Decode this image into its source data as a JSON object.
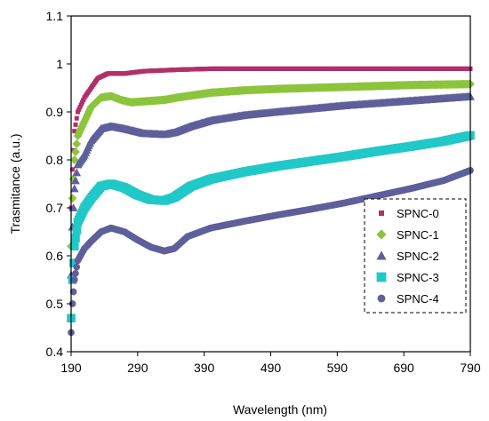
{
  "chart_data": {
    "type": "scatter",
    "title": "",
    "xlabel": "Wavelength (nm)",
    "ylabel": "Trasmitance (a.u.)",
    "xlim": [
      190,
      790
    ],
    "ylim": [
      0.4,
      1.1
    ],
    "xticks": [
      "190",
      "290",
      "390",
      "490",
      "590",
      "690",
      "790"
    ],
    "yticks": [
      "0.4",
      "0.5",
      "0.6",
      "0.7",
      "0.8",
      "0.9",
      "1",
      "1.1"
    ],
    "grid": false,
    "legend_position": "right",
    "series": [
      {
        "name": "SPNC-0",
        "color": "#b0306a",
        "marker": "square-small",
        "points": [
          [
            190,
            0.7
          ],
          [
            192,
            0.78
          ],
          [
            195,
            0.86
          ],
          [
            200,
            0.9
          ],
          [
            210,
            0.93
          ],
          [
            220,
            0.95
          ],
          [
            230,
            0.97
          ],
          [
            245,
            0.98
          ],
          [
            270,
            0.98
          ],
          [
            300,
            0.985
          ],
          [
            350,
            0.988
          ],
          [
            400,
            0.99
          ],
          [
            500,
            0.99
          ],
          [
            600,
            0.99
          ],
          [
            700,
            0.99
          ],
          [
            790,
            0.99
          ]
        ]
      },
      {
        "name": "SPNC-1",
        "color": "#8cc43c",
        "marker": "diamond",
        "points": [
          [
            190,
            0.62
          ],
          [
            192,
            0.72
          ],
          [
            195,
            0.8
          ],
          [
            200,
            0.85
          ],
          [
            210,
            0.88
          ],
          [
            220,
            0.91
          ],
          [
            235,
            0.93
          ],
          [
            250,
            0.933
          ],
          [
            265,
            0.925
          ],
          [
            280,
            0.92
          ],
          [
            300,
            0.922
          ],
          [
            330,
            0.925
          ],
          [
            350,
            0.93
          ],
          [
            400,
            0.94
          ],
          [
            450,
            0.945
          ],
          [
            500,
            0.948
          ],
          [
            600,
            0.952
          ],
          [
            700,
            0.956
          ],
          [
            790,
            0.958
          ]
        ]
      },
      {
        "name": "SPNC-2",
        "color": "#5f5f9a",
        "marker": "triangle",
        "points": [
          [
            190,
            0.56
          ],
          [
            192,
            0.66
          ],
          [
            195,
            0.74
          ],
          [
            200,
            0.79
          ],
          [
            210,
            0.81
          ],
          [
            220,
            0.84
          ],
          [
            235,
            0.865
          ],
          [
            250,
            0.87
          ],
          [
            270,
            0.865
          ],
          [
            300,
            0.855
          ],
          [
            330,
            0.853
          ],
          [
            345,
            0.857
          ],
          [
            370,
            0.87
          ],
          [
            400,
            0.882
          ],
          [
            450,
            0.893
          ],
          [
            500,
            0.9
          ],
          [
            600,
            0.913
          ],
          [
            700,
            0.923
          ],
          [
            790,
            0.932
          ]
        ]
      },
      {
        "name": "SPNC-3",
        "color": "#20c8c8",
        "marker": "square",
        "points": [
          [
            190,
            0.47
          ],
          [
            192,
            0.55
          ],
          [
            195,
            0.62
          ],
          [
            200,
            0.67
          ],
          [
            210,
            0.7
          ],
          [
            220,
            0.72
          ],
          [
            235,
            0.745
          ],
          [
            250,
            0.75
          ],
          [
            270,
            0.742
          ],
          [
            290,
            0.727
          ],
          [
            310,
            0.717
          ],
          [
            330,
            0.715
          ],
          [
            345,
            0.722
          ],
          [
            370,
            0.745
          ],
          [
            400,
            0.76
          ],
          [
            450,
            0.775
          ],
          [
            500,
            0.787
          ],
          [
            550,
            0.797
          ],
          [
            600,
            0.807
          ],
          [
            650,
            0.818
          ],
          [
            700,
            0.828
          ],
          [
            750,
            0.839
          ],
          [
            790,
            0.851
          ]
        ]
      },
      {
        "name": "SPNC-4",
        "color": "#5f5f9a",
        "marker": "circle",
        "points": [
          [
            190,
            0.44
          ],
          [
            192,
            0.5
          ],
          [
            195,
            0.55
          ],
          [
            200,
            0.59
          ],
          [
            210,
            0.615
          ],
          [
            220,
            0.63
          ],
          [
            235,
            0.65
          ],
          [
            250,
            0.658
          ],
          [
            270,
            0.65
          ],
          [
            290,
            0.633
          ],
          [
            310,
            0.618
          ],
          [
            330,
            0.61
          ],
          [
            345,
            0.615
          ],
          [
            365,
            0.64
          ],
          [
            400,
            0.658
          ],
          [
            450,
            0.672
          ],
          [
            500,
            0.685
          ],
          [
            550,
            0.697
          ],
          [
            600,
            0.71
          ],
          [
            650,
            0.725
          ],
          [
            700,
            0.74
          ],
          [
            750,
            0.757
          ],
          [
            790,
            0.778
          ]
        ]
      }
    ]
  }
}
